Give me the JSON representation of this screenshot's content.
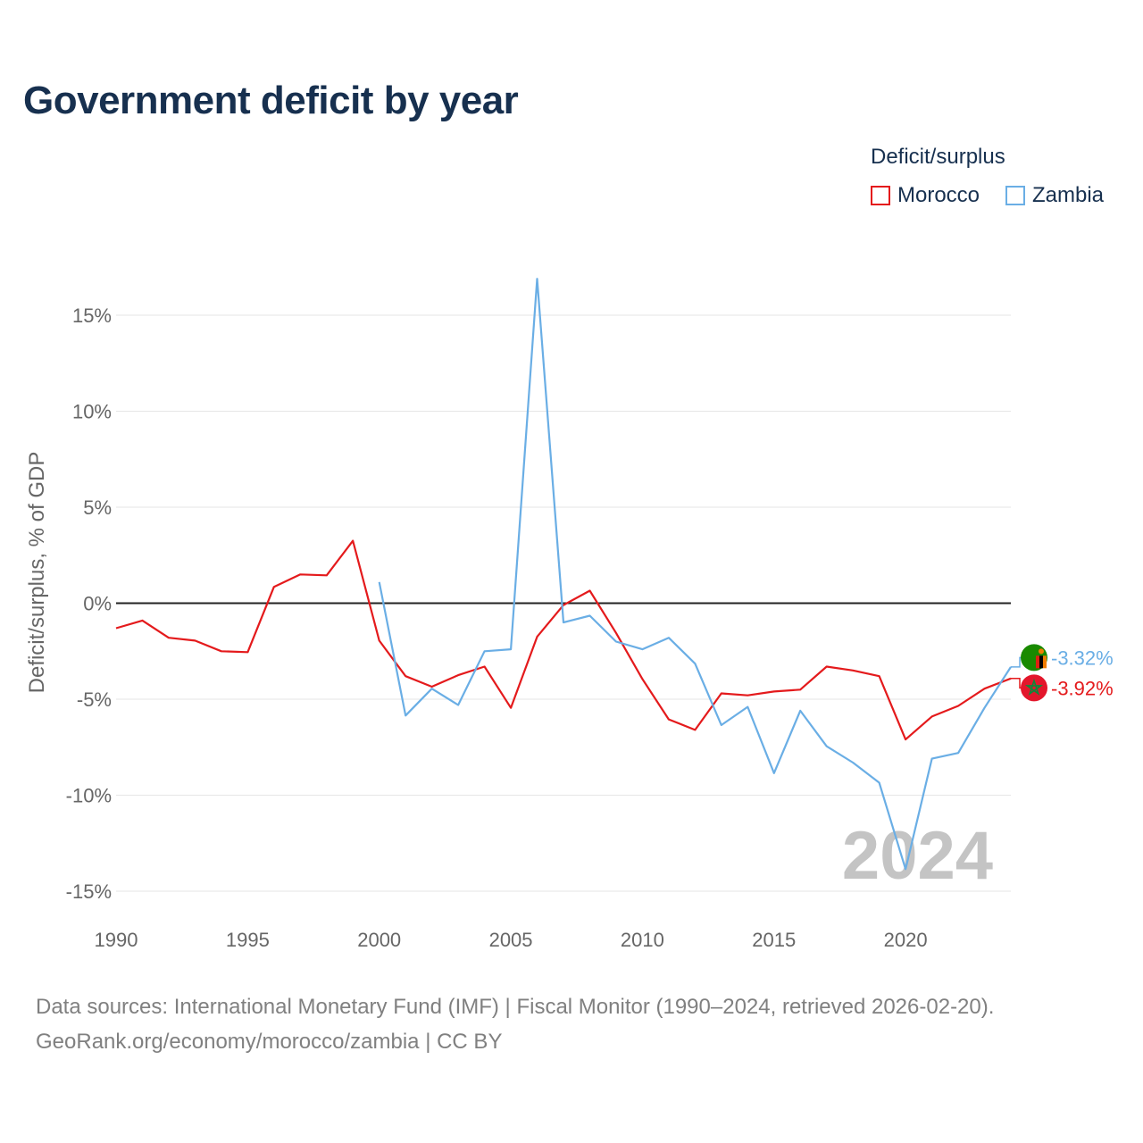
{
  "title": "Government deficit by year",
  "legend": {
    "title": "Deficit/surplus",
    "items": [
      {
        "name": "Morocco",
        "color": "#e41a1c"
      },
      {
        "name": "Zambia",
        "color": "#6aaee5"
      }
    ]
  },
  "sources": {
    "line1": "Data sources: International Monetary Fund (IMF) | Fiscal Monitor (1990–2024, retrieved 2026-02-20).",
    "line2": "GeoRank.org/economy/morocco/zambia | CC BY"
  },
  "chart_data": {
    "type": "line",
    "title": "Government deficit by year",
    "xlabel": "",
    "ylabel": "Deficit/surplus, % of GDP",
    "xlim": [
      1990,
      2024
    ],
    "ylim": [
      -15,
      15
    ],
    "xticks": [
      1990,
      1995,
      2000,
      2005,
      2010,
      2015,
      2020
    ],
    "yticks": [
      15,
      10,
      5,
      0,
      -5,
      -10,
      -15
    ],
    "ytick_labels": [
      "15%",
      "10%",
      "5%",
      "0%",
      "-5%",
      "-10%",
      "-15%"
    ],
    "xtick_labels": [
      "1990",
      "1995",
      "2000",
      "2005",
      "2010",
      "2015",
      "2020"
    ],
    "grid": true,
    "legend_position": "top-right",
    "year_watermark": "2024",
    "series": [
      {
        "name": "Morocco",
        "color": "#e41a1c",
        "end_label": "-3.92%",
        "flag": "morocco",
        "points": [
          [
            1990,
            -1.3
          ],
          [
            1991,
            -0.9
          ],
          [
            1992,
            -1.8
          ],
          [
            1993,
            -1.95
          ],
          [
            1994,
            -2.5
          ],
          [
            1995,
            -2.55
          ],
          [
            1996,
            0.85
          ],
          [
            1997,
            1.5
          ],
          [
            1998,
            1.45
          ],
          [
            1999,
            3.25
          ],
          [
            2000,
            -1.95
          ],
          [
            2001,
            -3.8
          ],
          [
            2002,
            -4.35
          ],
          [
            2003,
            -3.75
          ],
          [
            2004,
            -3.3
          ],
          [
            2005,
            -5.45
          ],
          [
            2006,
            -1.75
          ],
          [
            2007,
            -0.1
          ],
          [
            2008,
            0.65
          ],
          [
            2009,
            -1.55
          ],
          [
            2010,
            -3.95
          ],
          [
            2011,
            -6.05
          ],
          [
            2012,
            -6.6
          ],
          [
            2013,
            -4.7
          ],
          [
            2014,
            -4.8
          ],
          [
            2015,
            -4.6
          ],
          [
            2016,
            -4.5
          ],
          [
            2017,
            -3.3
          ],
          [
            2018,
            -3.5
          ],
          [
            2019,
            -3.8
          ],
          [
            2020,
            -7.1
          ],
          [
            2021,
            -5.9
          ],
          [
            2022,
            -5.35
          ],
          [
            2023,
            -4.45
          ],
          [
            2024,
            -3.92
          ]
        ]
      },
      {
        "name": "Zambia",
        "color": "#6aaee5",
        "end_label": "-3.32%",
        "flag": "zambia",
        "points": [
          [
            2000,
            1.1
          ],
          [
            2001,
            -5.85
          ],
          [
            2002,
            -4.45
          ],
          [
            2003,
            -5.3
          ],
          [
            2004,
            -2.5
          ],
          [
            2005,
            -2.4
          ],
          [
            2006,
            16.9
          ],
          [
            2007,
            -1.0
          ],
          [
            2008,
            -0.65
          ],
          [
            2009,
            -2.0
          ],
          [
            2010,
            -2.4
          ],
          [
            2011,
            -1.8
          ],
          [
            2012,
            -3.15
          ],
          [
            2013,
            -6.35
          ],
          [
            2014,
            -5.4
          ],
          [
            2015,
            -8.85
          ],
          [
            2016,
            -5.6
          ],
          [
            2017,
            -7.45
          ],
          [
            2018,
            -8.3
          ],
          [
            2019,
            -9.35
          ],
          [
            2020,
            -13.85
          ],
          [
            2021,
            -8.1
          ],
          [
            2022,
            -7.8
          ],
          [
            2023,
            -5.45
          ],
          [
            2024,
            -3.32
          ]
        ]
      }
    ]
  }
}
